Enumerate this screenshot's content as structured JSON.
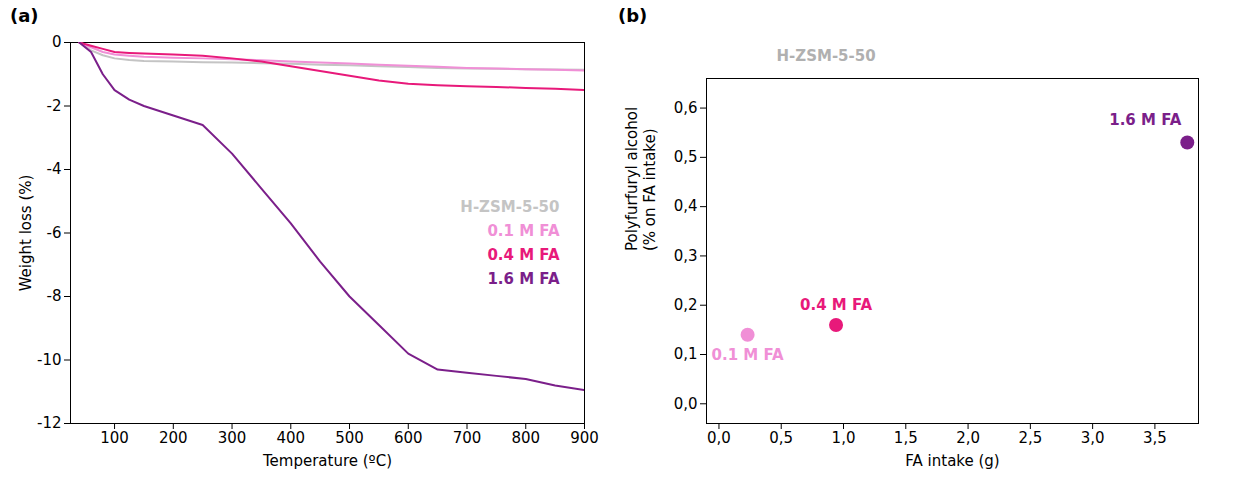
{
  "chart_data": [
    {
      "type": "line",
      "title": "(a)",
      "x_label": "Temperature (ºC)",
      "y_label": "Weight loss (%)",
      "x": [
        40,
        60,
        80,
        100,
        125,
        150,
        200,
        250,
        300,
        350,
        400,
        450,
        500,
        550,
        600,
        650,
        700,
        750,
        800,
        850,
        900
      ],
      "series": [
        {
          "name": "H-ZSM-5-50",
          "color": "#c4c4c4",
          "values": [
            0,
            -0.25,
            -0.4,
            -0.5,
            -0.55,
            -0.58,
            -0.6,
            -0.62,
            -0.63,
            -0.65,
            -0.67,
            -0.7,
            -0.72,
            -0.75,
            -0.77,
            -0.8,
            -0.82,
            -0.83,
            -0.84,
            -0.85,
            -0.86
          ]
        },
        {
          "name": "0.1 M FA",
          "color": "#f08fd6",
          "values": [
            0,
            -0.15,
            -0.3,
            -0.38,
            -0.42,
            -0.45,
            -0.48,
            -0.5,
            -0.53,
            -0.56,
            -0.6,
            -0.63,
            -0.66,
            -0.7,
            -0.73,
            -0.76,
            -0.8,
            -0.82,
            -0.84,
            -0.86,
            -0.88
          ]
        },
        {
          "name": "0.4 M FA",
          "color": "#e8197a",
          "values": [
            0,
            -0.1,
            -0.2,
            -0.3,
            -0.33,
            -0.35,
            -0.38,
            -0.42,
            -0.5,
            -0.6,
            -0.75,
            -0.9,
            -1.05,
            -1.2,
            -1.3,
            -1.35,
            -1.38,
            -1.4,
            -1.43,
            -1.46,
            -1.5
          ]
        },
        {
          "name": "1.6 M FA",
          "color": "#7b1f8a",
          "values": [
            0,
            -0.3,
            -1.0,
            -1.5,
            -1.8,
            -2.0,
            -2.3,
            -2.6,
            -3.5,
            -4.6,
            -5.7,
            -6.9,
            -8.0,
            -8.9,
            -9.8,
            -10.3,
            -10.4,
            -10.5,
            -10.6,
            -10.8,
            -10.95
          ]
        }
      ],
      "xlim": [
        25,
        900
      ],
      "ylim": [
        -12,
        0
      ],
      "xticks": [
        100,
        200,
        300,
        400,
        500,
        600,
        700,
        800,
        900
      ],
      "yticks": [
        -12,
        -10,
        -8,
        -6,
        -4,
        -2,
        0
      ],
      "legend": "right",
      "grid": false
    },
    {
      "type": "scatter",
      "title": "(b)",
      "x_label": "FA intake (g)",
      "y_label": "Polyfurfuryl alcohol (% on FA intake)",
      "x": [
        0.23,
        0.94,
        3.76
      ],
      "values": [
        0.14,
        0.16,
        0.53
      ],
      "point_labels": [
        "0.1 M FA",
        "0.4 M FA",
        "1.6 M FA"
      ],
      "colors": [
        "#f08fd6",
        "#e8197a",
        "#7b1f8a"
      ],
      "annotations": [
        "H-ZSM-5-50"
      ],
      "xlim": [
        -0.1,
        3.85
      ],
      "ylim": [
        -0.04,
        0.66
      ],
      "xticks": [
        {
          "value": 0,
          "label": "0,0"
        },
        {
          "value": 0.5,
          "label": "0,5"
        },
        {
          "value": 1,
          "label": "1,0"
        },
        {
          "value": 1.5,
          "label": "1,5"
        },
        {
          "value": 2,
          "label": "2,0"
        },
        {
          "value": 2.5,
          "label": "2,5"
        },
        {
          "value": 3,
          "label": "3,0"
        },
        {
          "value": 3.5,
          "label": "3,5"
        }
      ],
      "yticks": [
        {
          "value": 0,
          "label": "0,0"
        },
        {
          "value": 0.1,
          "label": "0,1"
        },
        {
          "value": 0.2,
          "label": "0,2"
        },
        {
          "value": 0.3,
          "label": "0,3"
        },
        {
          "value": 0.4,
          "label": "0,4"
        },
        {
          "value": 0.5,
          "label": "0,5"
        },
        {
          "value": 0.6,
          "label": "0,6"
        }
      ],
      "grid": false
    }
  ]
}
